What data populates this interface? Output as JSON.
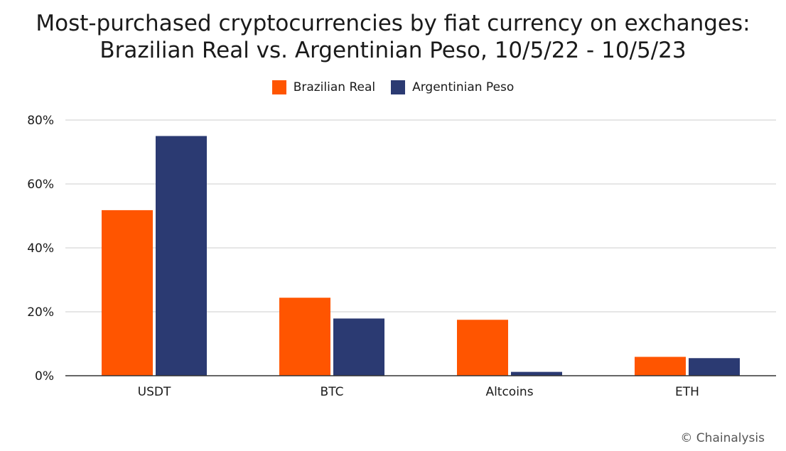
{
  "chart_data": {
    "type": "bar",
    "title": "Most-purchased cryptocurrencies by fiat currency on exchanges:",
    "subtitle": "Brazilian Real vs. Argentinian Peso, 10/5/22 - 10/5/23",
    "categories": [
      "USDT",
      "BTC",
      "Altcoins",
      "ETH"
    ],
    "series": [
      {
        "name": "Brazilian Real",
        "color": "#ff5500",
        "values": [
          51.8,
          24.4,
          17.5,
          5.9
        ]
      },
      {
        "name": "Argentinian Peso",
        "color": "#2b3a72",
        "values": [
          75.0,
          17.9,
          1.2,
          5.5
        ]
      }
    ],
    "ylim": [
      0,
      80
    ],
    "yticks": [
      "0%",
      "20%",
      "40%",
      "60%",
      "80%"
    ],
    "ytick_values": [
      0,
      20,
      40,
      60,
      80
    ],
    "grid": true,
    "legend_position": "top-center"
  },
  "watermark": "© Chainalysis"
}
